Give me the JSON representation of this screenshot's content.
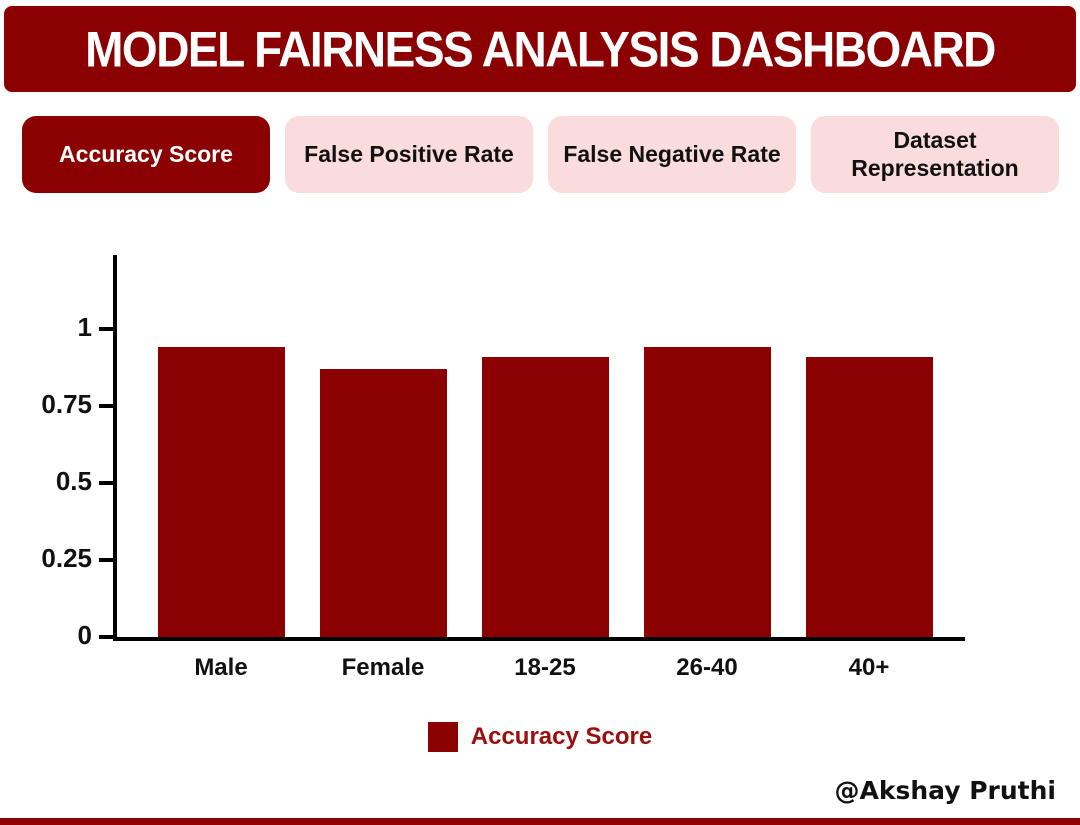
{
  "header": {
    "title": "MODEL FAIRNESS ANALYSIS DASHBOARD"
  },
  "tabs": [
    {
      "label": "Accuracy Score",
      "active": true
    },
    {
      "label": "False Positive Rate",
      "active": false
    },
    {
      "label": "False Negative Rate",
      "active": false
    },
    {
      "label": "Dataset Representation",
      "active": false
    }
  ],
  "chart_data": {
    "type": "bar",
    "categories": [
      "Male",
      "Female",
      "18-25",
      "26-40",
      "40+"
    ],
    "series": [
      {
        "name": "Accuracy Score",
        "values": [
          0.94,
          0.87,
          0.91,
          0.94,
          0.91
        ]
      }
    ],
    "title": "",
    "xlabel": "",
    "ylabel": "",
    "yticks": [
      0,
      0.25,
      0.5,
      0.75,
      1
    ],
    "ylim": [
      0,
      1.15
    ],
    "grid": false,
    "legend_position": "bottom",
    "bar_color": "#8B0101"
  },
  "legend": {
    "label": "Accuracy Score"
  },
  "signature": "@Akshay Pruthi",
  "colors": {
    "accent": "#8B0101",
    "tab_inactive_bg": "#FADCDC",
    "tab_active_text": "#FFFFFF",
    "tab_inactive_text": "#111111",
    "legend_text": "#9C0D0D",
    "axis": "#000000"
  }
}
